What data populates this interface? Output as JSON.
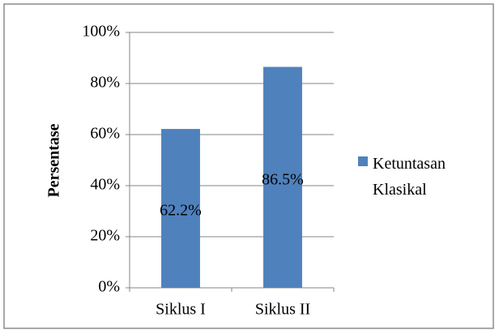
{
  "chart_data": {
    "type": "bar",
    "y_label": "Persentase",
    "categories": [
      "Siklus I",
      "Siklus II"
    ],
    "series": [
      {
        "name": "Ketuntasan Klasikal",
        "color": "#4f81bd",
        "values": [
          62.2,
          86.5
        ],
        "value_labels": [
          "62.2%",
          "86.5%"
        ]
      }
    ],
    "ylim": [
      0,
      100
    ],
    "yticks": [
      {
        "value": 0,
        "label": "0%"
      },
      {
        "value": 20,
        "label": "20%"
      },
      {
        "value": 40,
        "label": "40%"
      },
      {
        "value": 60,
        "label": "60%"
      },
      {
        "value": 80,
        "label": "80%"
      },
      {
        "value": 100,
        "label": "100%"
      }
    ],
    "grid": true,
    "legend": "right"
  }
}
